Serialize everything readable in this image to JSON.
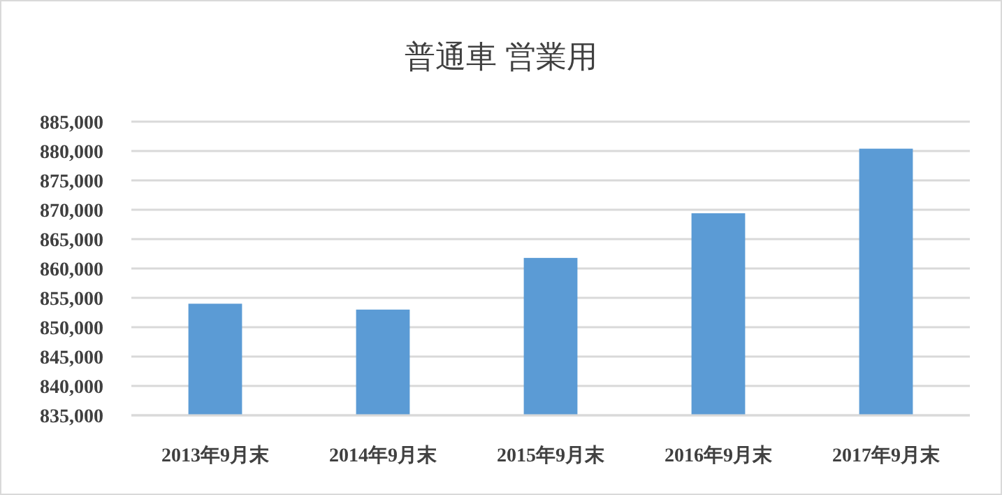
{
  "chart_data": {
    "type": "bar",
    "title": "普通車 営業用",
    "categories": [
      "2013年9月末",
      "2014年9月末",
      "2015年9月末",
      "2016年9月末",
      "2017年9月末"
    ],
    "values": [
      854000,
      853000,
      861800,
      869400,
      880400
    ],
    "color": "#5b9bd5",
    "ylim": [
      835000,
      885000
    ],
    "yticks": [
      {
        "value": 835000,
        "label": "835,000"
      },
      {
        "value": 840000,
        "label": "840,000"
      },
      {
        "value": 845000,
        "label": "845,000"
      },
      {
        "value": 850000,
        "label": "850,000"
      },
      {
        "value": 855000,
        "label": "855,000"
      },
      {
        "value": 860000,
        "label": "860,000"
      },
      {
        "value": 865000,
        "label": "865,000"
      },
      {
        "value": 870000,
        "label": "870,000"
      },
      {
        "value": 875000,
        "label": "875,000"
      },
      {
        "value": 880000,
        "label": "880,000"
      },
      {
        "value": 885000,
        "label": "885,000"
      }
    ],
    "grid": "y"
  }
}
